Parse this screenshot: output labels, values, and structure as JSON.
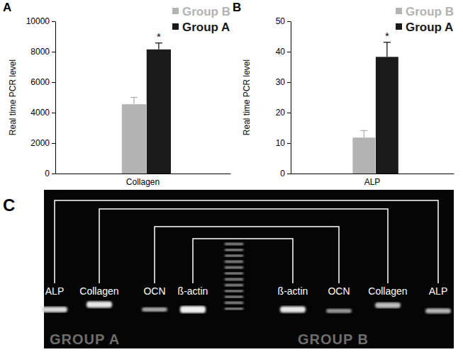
{
  "chart_data": [
    {
      "type": "bar",
      "annotations": [
        "A",
        "*"
      ],
      "categories": [
        "Collagen"
      ],
      "series": [
        {
          "name": "Group B",
          "color": "#b3b3b3",
          "values": [
            4550
          ],
          "errors": [
            450
          ]
        },
        {
          "name": "Group A",
          "color": "#1a1a1a",
          "values": [
            8150
          ],
          "errors": [
            420
          ]
        }
      ],
      "y_label": "Real time PCR level",
      "ylim": [
        0,
        10000
      ],
      "yticks": [
        0,
        2000,
        4000,
        6000,
        8000,
        10000
      ],
      "legend": "upper right"
    },
    {
      "type": "bar",
      "annotations": [
        "B",
        "*"
      ],
      "categories": [
        "ALP"
      ],
      "series": [
        {
          "name": "Group B",
          "color": "#b3b3b3",
          "values": [
            11.8
          ],
          "errors": [
            2.3
          ]
        },
        {
          "name": "Group A",
          "color": "#1a1a1a",
          "values": [
            38.3
          ],
          "errors": [
            4.8
          ]
        }
      ],
      "y_label": "Real time PCR level",
      "ylim": [
        0,
        50
      ],
      "yticks": [
        0,
        10,
        20,
        30,
        40,
        50
      ],
      "legend": "upper right"
    }
  ],
  "gel": {
    "panel": "C",
    "lanes": [
      "ALP",
      "Collagen",
      "OCN",
      "ß-actin",
      null,
      "ß-actin",
      "OCN",
      "Collagen",
      "ALP"
    ],
    "groups": [
      "GROUP A",
      "GROUP B"
    ]
  }
}
